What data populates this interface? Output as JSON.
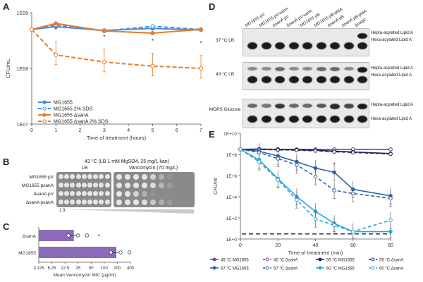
{
  "panel_labels": {
    "a": "A",
    "b": "B",
    "c": "C",
    "d": "D",
    "e": "E"
  },
  "chart_data": [
    {
      "id": "A",
      "type": "line",
      "title": "",
      "xlabel": "Time of treatment (hours)",
      "ylabel": "CFU/mL",
      "yscale": "log",
      "ylim": [
        10000000,
        1000000000
      ],
      "yticks": [
        "1E07",
        "1E08",
        "1E09"
      ],
      "xlim": [
        0,
        7
      ],
      "xticks": [
        0,
        1,
        2,
        3,
        4,
        5,
        6,
        7
      ],
      "x": [
        0,
        1,
        3,
        5,
        7
      ],
      "series": [
        {
          "name": "MG1655",
          "color": "#4a8fd6",
          "dashed": false,
          "marker": "filled",
          "values": [
            500000000,
            560000000,
            480000000,
            520000000,
            490000000
          ]
        },
        {
          "name": "MG1655 2% SDS",
          "color": "#4a8fd6",
          "dashed": true,
          "marker": "open",
          "values": [
            500000000,
            600000000,
            470000000,
            570000000,
            500000000
          ]
        },
        {
          "name": "MG1655 ΔsanA",
          "color": "#e87b2c",
          "dashed": false,
          "marker": "filled",
          "values": [
            500000000,
            640000000,
            470000000,
            430000000,
            500000000
          ]
        },
        {
          "name": "MG1655 ΔsanA 2% SDS",
          "color": "#e87b2c",
          "dashed": true,
          "marker": "open",
          "values": [
            500000000,
            175000000,
            130000000,
            110000000,
            100000000
          ]
        }
      ],
      "annotations": [
        "*",
        "*",
        "*",
        "*"
      ],
      "legend_placement": "bottom-left"
    },
    {
      "id": "C",
      "type": "bar",
      "orientation": "horizontal",
      "categories": [
        "ΔsanA",
        "MG1655"
      ],
      "values": [
        20,
        190
      ],
      "xscale": "log",
      "xlim": [
        3.125,
        400
      ],
      "xticks": [
        "3.125",
        "6.25",
        "12.5",
        "25",
        "50",
        "100",
        "200",
        "400"
      ],
      "xlabel": "Mean Vancomycin MIC (μg/ml)",
      "color": "#8b6bb8",
      "annotations": [
        "*"
      ]
    },
    {
      "id": "E",
      "type": "line",
      "xlabel": "Time of treatment (min)",
      "ylabel": "CFU/ml",
      "yscale": "log",
      "ylim": [
        1,
        10000000000
      ],
      "yticks": [
        "1E+0",
        "1E+2",
        "1E+4",
        "1E+6",
        "1E+8",
        "1E+10"
      ],
      "xlim": [
        0,
        80
      ],
      "xticks": [
        0,
        20,
        40,
        60,
        80
      ],
      "x": [
        0,
        10,
        20,
        30,
        40,
        50,
        60,
        80
      ],
      "detection_limit": 3,
      "series": [
        {
          "name": "45 °C MG1655",
          "color": "#7b3fa0",
          "dashed": false,
          "marker": "filled",
          "values": [
            300000000,
            300000000,
            300000000,
            300000000,
            300000000,
            300000000,
            300000000,
            300000000
          ]
        },
        {
          "name": "45 °C ΔsanA",
          "color": "#7b3fa0",
          "dashed": true,
          "marker": "open",
          "values": [
            300000000,
            300000000,
            300000000,
            300000000,
            300000000,
            300000000,
            300000000,
            300000000
          ]
        },
        {
          "name": "55 °C MG1655",
          "color": "#1a2a5c",
          "dashed": false,
          "marker": "filled",
          "values": [
            300000000,
            320000000,
            300000000,
            270000000,
            250000000,
            200000000,
            170000000,
            120000000
          ]
        },
        {
          "name": "55 °C ΔsanA",
          "color": "#1a2a5c",
          "dashed": true,
          "marker": "open",
          "values": [
            300000000,
            290000000,
            270000000,
            250000000,
            220000000,
            180000000,
            150000000,
            110000000
          ]
        },
        {
          "name": "57 °C MG1655",
          "color": "#2b65a8",
          "dashed": false,
          "marker": "filled",
          "values": [
            300000000,
            200000000,
            70000000,
            20000000,
            5000000,
            2000000,
            50000,
            12000
          ]
        },
        {
          "name": "57 °C ΔsanA",
          "color": "#2b65a8",
          "dashed": true,
          "marker": "open",
          "values": [
            300000000,
            150000000,
            40000000,
            10000000,
            800000,
            40000,
            20000,
            7000
          ]
        },
        {
          "name": "60 °C MG1655",
          "color": "#29a8d8",
          "dashed": false,
          "marker": "filled",
          "values": [
            300000000,
            30000000,
            500000,
            10000,
            400,
            30,
            5,
            5
          ]
        },
        {
          "name": "60 °C ΔsanA",
          "color": "#29a8d8",
          "dashed": true,
          "marker": "open",
          "values": [
            300000000,
            20000000,
            400000,
            5000,
            80,
            20,
            5,
            60
          ]
        }
      ],
      "annotations": [
        "*"
      ],
      "legend_placement": "bottom"
    }
  ],
  "panel_b": {
    "header": "43 °C (LB 1 mM MgSO4, 25 mg/L kan)",
    "col_labels": [
      "LB",
      "Vancomycin (70 mg/L)"
    ],
    "row_labels": [
      "MG1655 pV",
      "MG1655 psanA",
      "ΔsanA pV",
      "ΔsanA psanA"
    ],
    "dilution_label": "1:3",
    "spots_lb": [
      [
        1,
        1,
        1,
        1,
        1,
        1,
        1,
        1,
        1
      ],
      [
        1,
        1,
        1,
        1,
        1,
        1,
        1,
        1,
        1
      ],
      [
        1,
        1,
        1,
        1,
        1,
        1,
        1,
        1,
        1
      ],
      [
        1,
        1,
        1,
        1,
        1,
        1,
        1,
        1,
        1
      ]
    ],
    "spots_vanc": [
      [
        1,
        1,
        1,
        1,
        0.8,
        0.4,
        0.1,
        0,
        0
      ],
      [
        1,
        1,
        1,
        1,
        0.9,
        0.5,
        0.2,
        0,
        0
      ],
      [
        1,
        1,
        0.8,
        0.4,
        0.1,
        0,
        0,
        0,
        0
      ],
      [
        1,
        1,
        1,
        0.9,
        0.7,
        0.4,
        0.2,
        0,
        0
      ]
    ]
  },
  "panel_d": {
    "lane_labels": [
      "MG1655 pV",
      "MG1655 pV-sanA",
      "ΔsanA pV",
      "ΔsanA pV-sanA",
      "MG1655 pB",
      "MG1655 pB-pldA",
      "ΔsanA pB",
      "ΔsanA pB-pldA",
      "ΔmlaC"
    ],
    "rows": [
      {
        "label": "37 °C LB",
        "bands_top": [
          0,
          0,
          0,
          0,
          0,
          0,
          0,
          0,
          1
        ],
        "bands_bottom": [
          1,
          1,
          1,
          1,
          1,
          1,
          1,
          1,
          1
        ]
      },
      {
        "label": "43 °C LB",
        "bands_top": [
          0.3,
          0.3,
          0.5,
          0.3,
          0.3,
          0.5,
          0.5,
          0.3,
          1
        ],
        "bands_bottom": [
          1,
          1,
          1,
          1,
          1,
          1,
          1,
          1,
          1
        ]
      },
      {
        "label": "MOPS Glucose",
        "bands_top": [
          0.5,
          0.4,
          0.8,
          0.5,
          0.5,
          0.6,
          0.9,
          0.7,
          1
        ],
        "bands_bottom": [
          1,
          1,
          1,
          1,
          1,
          1,
          1,
          1,
          1
        ]
      }
    ],
    "band_labels": [
      "Hepta-acylated Lipid A",
      "Hexa-acylated Lipid A"
    ]
  }
}
